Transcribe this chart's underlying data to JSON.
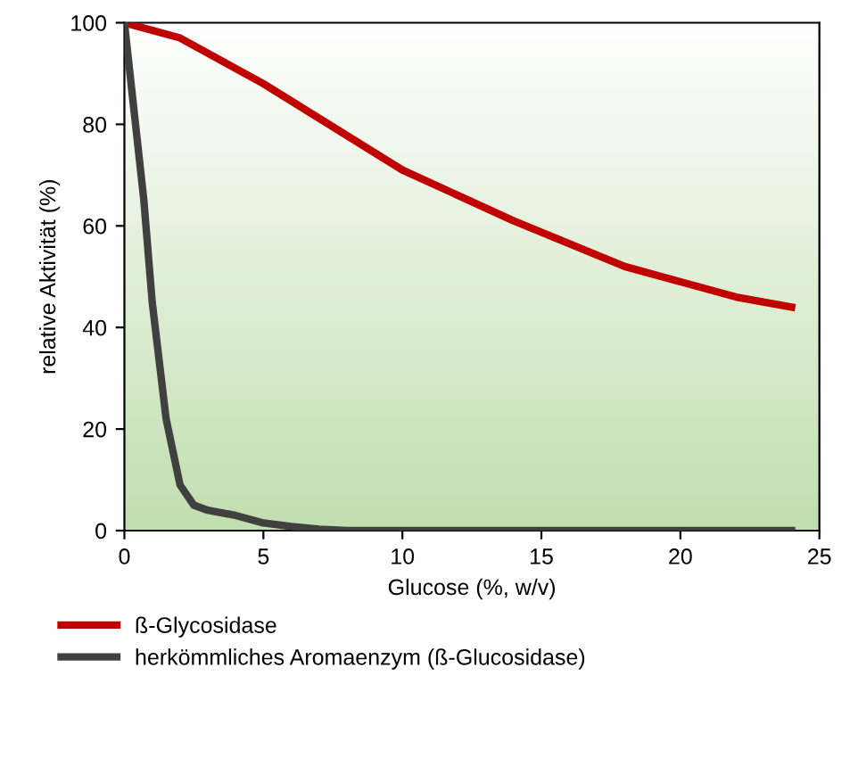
{
  "chart_data": {
    "type": "line",
    "xlabel": "Glucose (%, w/v)",
    "ylabel": "relative Aktivität (%)",
    "xlim": [
      0,
      25
    ],
    "ylim": [
      0,
      100
    ],
    "xticks": [
      0,
      5,
      10,
      15,
      20,
      25
    ],
    "yticks": [
      0,
      20,
      40,
      60,
      80,
      100
    ],
    "grid": false,
    "legend": "bottom",
    "marker": "none",
    "line_style": "solid",
    "series": [
      {
        "name": "ß-Glycosidase",
        "color": "#c00000",
        "x": [
          0,
          2,
          5,
          10,
          14,
          18,
          20,
          22,
          24
        ],
        "values": [
          100,
          97,
          88,
          71,
          61,
          52,
          49,
          46,
          44
        ]
      },
      {
        "name": "herkömmliches Aromaenzym (ß-Glucosidase)",
        "color": "#404040",
        "x": [
          0,
          0.3,
          0.7,
          1,
          1.5,
          2,
          2.5,
          3,
          4,
          5,
          6,
          7,
          8,
          24
        ],
        "values": [
          100,
          85,
          65,
          45,
          22,
          9,
          5,
          4,
          3,
          1.5,
          0.8,
          0.3,
          0,
          0
        ]
      }
    ]
  }
}
